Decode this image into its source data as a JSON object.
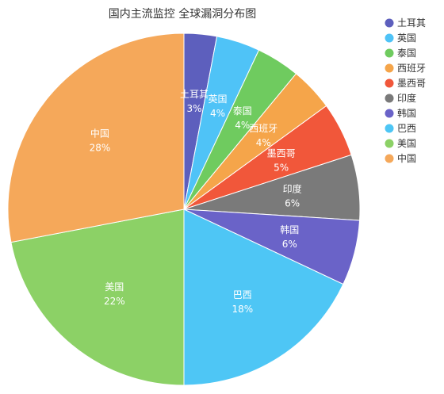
{
  "chart_data": {
    "type": "pie",
    "title": "国内主流监控 全球漏洞分布图",
    "legend_position": "right",
    "slices": [
      {
        "label": "土耳其",
        "value": 3,
        "display": "3%",
        "color": "#5d5fbd"
      },
      {
        "label": "英国",
        "value": 4,
        "display": "4%",
        "color": "#4fc3f7"
      },
      {
        "label": "泰国",
        "value": 4,
        "display": "4%",
        "color": "#6fcb5f"
      },
      {
        "label": "西班牙",
        "value": 4,
        "display": "4%",
        "color": "#f5a54a"
      },
      {
        "label": "墨西哥",
        "value": 5,
        "display": "5%",
        "color": "#f1573a"
      },
      {
        "label": "印度",
        "value": 6,
        "display": "6%",
        "color": "#7a7a7a"
      },
      {
        "label": "韩国",
        "value": 6,
        "display": "6%",
        "color": "#6a63c8"
      },
      {
        "label": "巴西",
        "value": 18,
        "display": "18%",
        "color": "#4ec6f5"
      },
      {
        "label": "美国",
        "value": 22,
        "display": "22%",
        "color": "#8cd166"
      },
      {
        "label": "中国",
        "value": 28,
        "display": "28%",
        "color": "#f5a85a"
      }
    ]
  }
}
